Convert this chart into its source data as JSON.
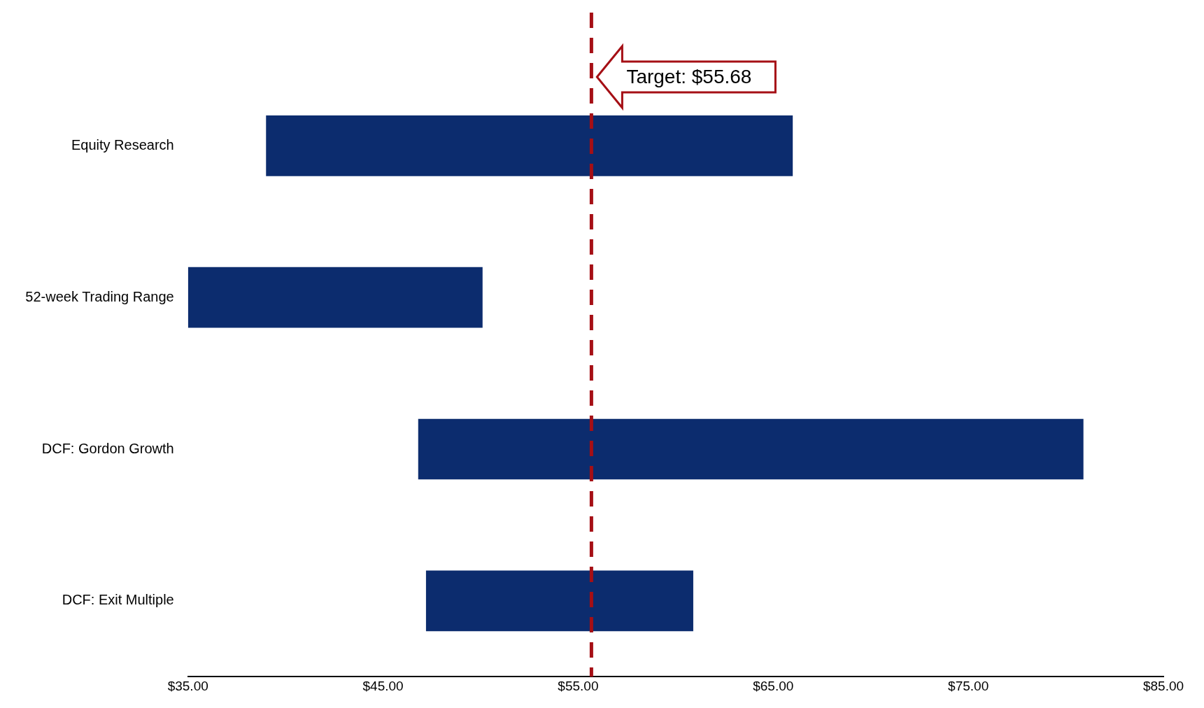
{
  "chart_data": {
    "type": "bar",
    "orientation": "horizontal",
    "categories": [
      "Equity Research",
      "52-week Trading Range",
      "DCF: Gordon Growth",
      "DCF: Exit Multiple"
    ],
    "base": [
      39,
      35,
      46.8,
      47.2
    ],
    "values": [
      27,
      15.1,
      34.1,
      13.7
    ],
    "color": "#0c2c6e",
    "xlim": [
      35,
      85
    ],
    "xticks": [
      {
        "value": 35,
        "label": "$35.00"
      },
      {
        "value": 45,
        "label": "$45.00"
      },
      {
        "value": 55,
        "label": "$55.00"
      },
      {
        "value": 65,
        "label": "$65.00"
      },
      {
        "value": 75,
        "label": "$75.00"
      },
      {
        "value": 85,
        "label": "$85.00"
      }
    ],
    "ref_lines": [
      {
        "axis": "x",
        "value": 55.68,
        "label": "Target: $55.68",
        "color": "#a50f15",
        "line_style": "dashed"
      }
    ],
    "grid": false,
    "legend": false
  }
}
